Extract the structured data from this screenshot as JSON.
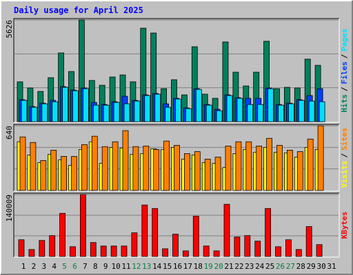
{
  "chart_data": [
    {
      "type": "bar",
      "title": "Daily usage for April 2025",
      "ylim": [
        0,
        5626
      ],
      "yticks": [
        5626
      ],
      "series": [
        {
          "name": "Hits",
          "color": "#00805c",
          "values": [
            2205,
            1863,
            1673,
            2433,
            3801,
            2775,
            5626,
            2281,
            2015,
            2471,
            2585,
            2205,
            5170,
            4904,
            1825,
            2319,
            1483,
            4144,
            1521,
            1292,
            4410,
            2737,
            1977,
            2737,
            4448,
            1825,
            1901,
            1863,
            3459,
            3117,
            0
          ]
        },
        {
          "name": "Files",
          "color": "#0040ff",
          "values": [
            1216,
            836,
            1026,
            1178,
            1939,
            1749,
            1863,
            1064,
            950,
            1102,
            1407,
            1178,
            1483,
            1559,
            988,
            1292,
            760,
            1825,
            950,
            684,
            1483,
            1330,
            1292,
            1292,
            1863,
            950,
            1026,
            1216,
            1445,
            1825,
            0
          ]
        },
        {
          "name": "Pages",
          "color": "#00e0ff",
          "values": [
            1178,
            798,
            988,
            1102,
            1901,
            1711,
            1825,
            912,
            912,
            1064,
            988,
            1140,
            1445,
            1521,
            798,
            1254,
            722,
            1787,
            912,
            608,
            1445,
            1292,
            950,
            950,
            1825,
            912,
            988,
            1178,
            1140,
            1102,
            0
          ]
        }
      ],
      "legend_separator": "/"
    },
    {
      "type": "bar",
      "ylim": [
        0,
        640
      ],
      "yticks": [
        640
      ],
      "series": [
        {
          "name": "Visits",
          "color": "#ffff00",
          "values": [
            482,
            351,
            275,
            358,
            303,
            248,
            406,
            482,
            268,
            426,
            420,
            358,
            365,
            413,
            406,
            426,
            310,
            351,
            275,
            268,
            227,
            365,
            406,
            378,
            426,
            378,
            372,
            330,
            426,
            406,
            0
          ]
        },
        {
          "name": "Sites",
          "color": "#ff8000",
          "values": [
            530,
            475,
            296,
            399,
            337,
            337,
            454,
            537,
            434,
            482,
            592,
            434,
            440,
            406,
            489,
            447,
            365,
            385,
            310,
            330,
            440,
            482,
            482,
            440,
            516,
            447,
            399,
            385,
            509,
            640,
            0
          ]
        }
      ],
      "legend_separator": "/"
    },
    {
      "type": "bar",
      "ylim": [
        0,
        140009
      ],
      "yticks": [
        140009
      ],
      "categories": [
        "1",
        "2",
        "3",
        "4",
        "5",
        "6",
        "7",
        "8",
        "9",
        "10",
        "11",
        "12",
        "13",
        "14",
        "15",
        "16",
        "17",
        "18",
        "19",
        "20",
        "21",
        "22",
        "23",
        "24",
        "25",
        "26",
        "27",
        "28",
        "29",
        "30",
        "31"
      ],
      "category_colors": [
        "#000000",
        "#000000",
        "#000000",
        "#000000",
        "#008040",
        "#008040",
        "#000000",
        "#000000",
        "#000000",
        "#000000",
        "#000000",
        "#008040",
        "#008040",
        "#000000",
        "#000000",
        "#000000",
        "#000000",
        "#000000",
        "#008040",
        "#008040",
        "#000000",
        "#000000",
        "#000000",
        "#000000",
        "#000000",
        "#008040",
        "#008040",
        "#000000",
        "#000000",
        "#000000",
        "#000000"
      ],
      "series": [
        {
          "name": "KBytes",
          "color": "#ff0000",
          "values": [
            37755,
            15731,
            36182,
            47194,
            97534,
            22024,
            140009,
            31463,
            23597,
            23597,
            23597,
            53487,
            116412,
            108546,
            17304,
            50340,
            12585,
            91242,
            23597,
            12585,
            117985,
            44048,
            47194,
            34609,
            108546,
            22024,
            37755,
            15731,
            67645,
            26743,
            0
          ]
        }
      ]
    }
  ]
}
